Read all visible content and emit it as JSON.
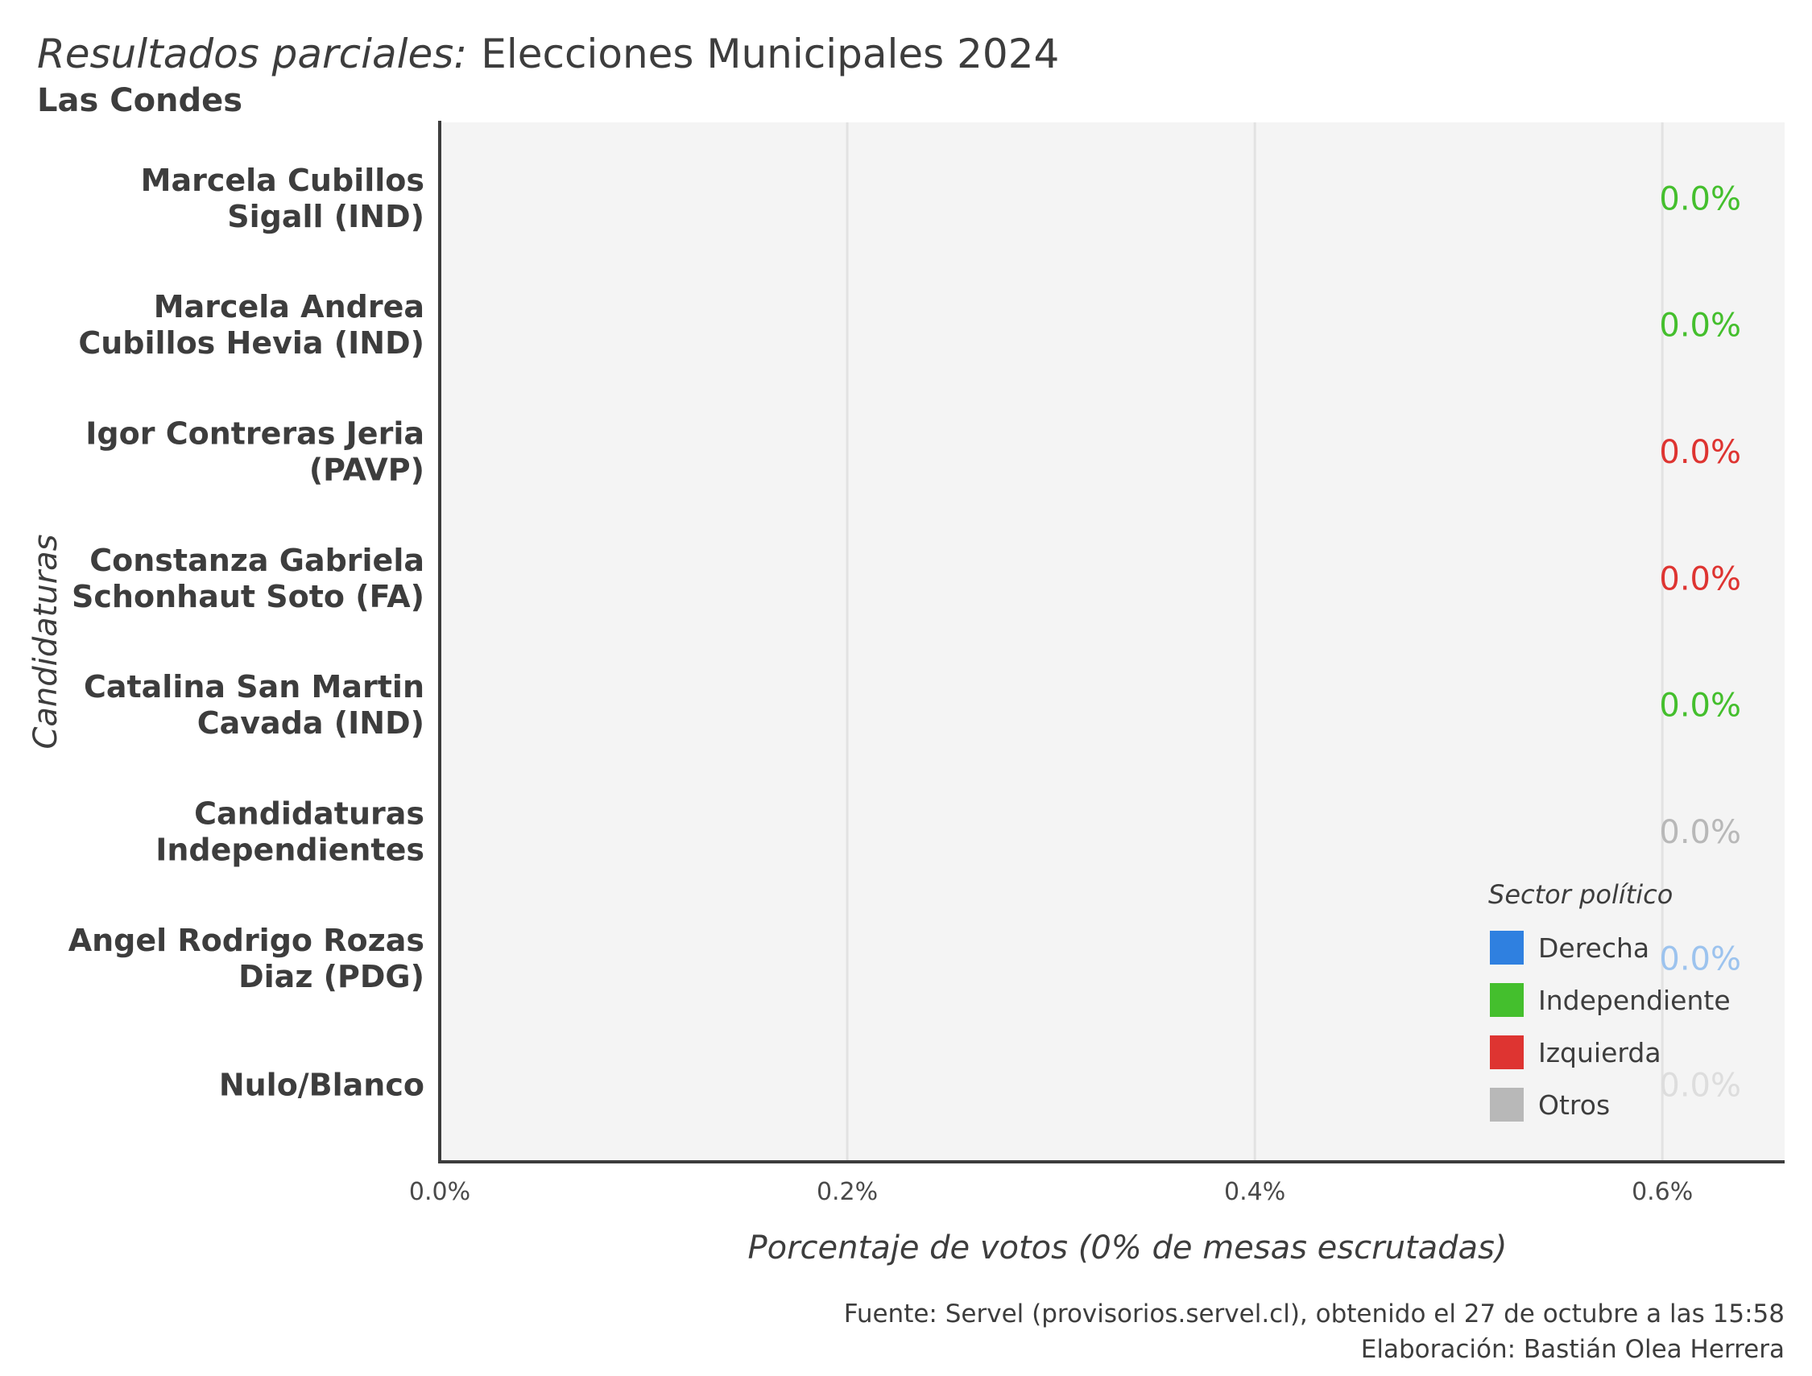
{
  "title_italic": "Resultados parciales:",
  "title_main": "Elecciones Municipales 2024",
  "subtitle": "Las Condes",
  "caption": [
    "Fuente: Servel (provisorios.servel.cl), obtenido el 27 de octubre a las 15:58",
    "Elaboración: Bastián Olea Herrera"
  ],
  "chart_data": {
    "type": "bar",
    "orientation": "horizontal",
    "xlabel": "Porcentaje de votos (0% de mesas escrutadas)",
    "ylabel": "Candidaturas",
    "xlim": [
      0,
      0.66
    ],
    "x_ticks": [
      0,
      0.2,
      0.4,
      0.6
    ],
    "x_tick_labels": [
      "0.0%",
      "0.2%",
      "0.4%",
      "0.6%"
    ],
    "grid": "vertical",
    "legend_position": "bottom-right",
    "legend_title": "Sector político",
    "sectors": [
      {
        "name": "Derecha",
        "color": "#2f80e0"
      },
      {
        "name": "Independiente",
        "color": "#44bf2d"
      },
      {
        "name": "Izquierda",
        "color": "#de3431"
      },
      {
        "name": "Otros",
        "color": "#b8b8b8"
      }
    ],
    "bars": [
      {
        "label": [
          "Marcela Cubillos",
          "Sigall (IND)"
        ],
        "value": 0.0,
        "value_label": "0.0%",
        "sector": "Independiente",
        "label_color": "#44bf2d"
      },
      {
        "label": [
          "Marcela Andrea",
          "Cubillos Hevia (IND)"
        ],
        "value": 0.0,
        "value_label": "0.0%",
        "sector": "Independiente",
        "label_color": "#44bf2d"
      },
      {
        "label": [
          "Igor Contreras Jeria",
          "(PAVP)"
        ],
        "value": 0.0,
        "value_label": "0.0%",
        "sector": "Izquierda",
        "label_color": "#de3431"
      },
      {
        "label": [
          "Constanza Gabriela",
          "Schonhaut Soto (FA)"
        ],
        "value": 0.0,
        "value_label": "0.0%",
        "sector": "Izquierda",
        "label_color": "#de3431"
      },
      {
        "label": [
          "Catalina San Martin",
          "Cavada (IND)"
        ],
        "value": 0.0,
        "value_label": "0.0%",
        "sector": "Independiente",
        "label_color": "#44bf2d"
      },
      {
        "label": [
          "Candidaturas",
          "Independientes"
        ],
        "value": 0.0,
        "value_label": "0.0%",
        "sector": "Otros",
        "label_color": "#b8b8b8"
      },
      {
        "label": [
          "Angel Rodrigo Rozas",
          "Diaz (PDG)"
        ],
        "value": 0.0,
        "value_label": "0.0%",
        "sector": "Derecha",
        "label_color": "#9cc3ee"
      },
      {
        "label": [
          "Nulo/Blanco"
        ],
        "value": 0.0,
        "value_label": "0.0%",
        "sector": "Otros",
        "label_color": "#dddddd"
      }
    ]
  }
}
